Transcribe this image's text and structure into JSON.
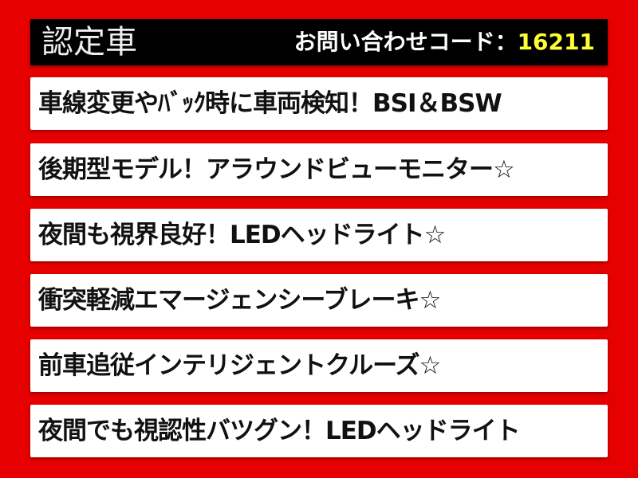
{
  "header": {
    "title": "認定車",
    "code_label": "お問い合わせコード：",
    "code_value": "16211"
  },
  "features": [
    "車線変更やﾊﾞｯｸ時に車両検知！BSI＆BSW",
    "後期型モデル！アラウンドビューモニター☆",
    "夜間も視界良好！LEDヘッドライト☆",
    "衝突軽減エマージェンシーブレーキ☆",
    "前車追従インテリジェントクルーズ☆",
    "夜間でも視認性バツグン！LEDヘッドライト"
  ],
  "colors": {
    "background": "#e60000",
    "header": "#000000",
    "code_value": "#ffff33"
  }
}
